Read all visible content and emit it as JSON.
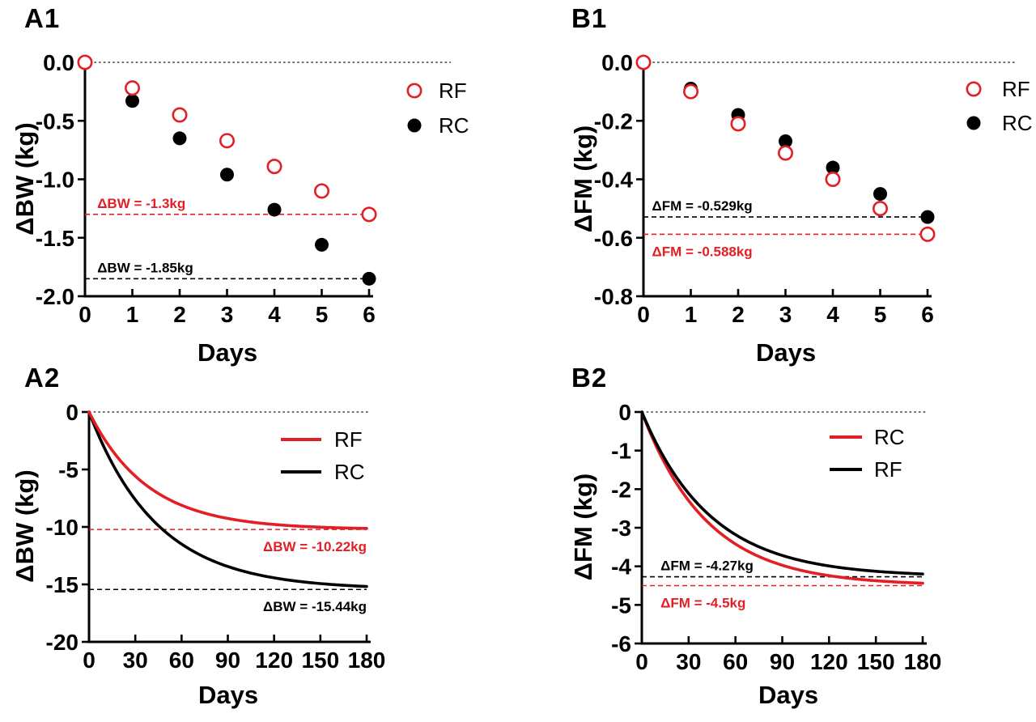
{
  "figure": {
    "background": "#ffffff",
    "description": "Four-panel weight-loss modeling figure"
  },
  "colors": {
    "red": "#e31e25",
    "black": "#000000",
    "zero_line": "#3a3a3a"
  },
  "panels": {
    "a1": {
      "letter": "A1",
      "xlabel": "Days",
      "ylabel": "ΔBW (kg)"
    },
    "b1": {
      "letter": "B1",
      "xlabel": "Days",
      "ylabel": "ΔFM (kg)"
    },
    "a2": {
      "letter": "A2",
      "xlabel": "Days",
      "ylabel": "ΔBW (kg)"
    },
    "b2": {
      "letter": "B2",
      "xlabel": "Days",
      "ylabel": "ΔFM (kg)"
    }
  },
  "chart_data": [
    {
      "id": "a1",
      "panel": "A1",
      "type": "scatter",
      "title": "",
      "xlabel": "Days",
      "ylabel": "ΔBW (kg)",
      "xlim": [
        0,
        6
      ],
      "ylim": [
        -2,
        0
      ],
      "xtick_values": [
        0,
        1,
        2,
        3,
        4,
        5,
        6
      ],
      "xtick_labels": [
        "0",
        "1",
        "2",
        "3",
        "4",
        "5",
        "6"
      ],
      "ytick_values": [
        0,
        -0.5,
        -1,
        -1.5,
        -2
      ],
      "ytick_labels": [
        "0.0",
        "-0.5",
        "-1.0",
        "-1.5",
        "-2.0"
      ],
      "x": [
        0,
        1,
        2,
        3,
        4,
        5,
        6
      ],
      "series": [
        {
          "name": "RC",
          "marker": "filled-circle",
          "color": "#000000",
          "values": [
            0,
            -0.33,
            -0.65,
            -0.96,
            -1.26,
            -1.56,
            -1.85
          ]
        },
        {
          "name": "RF",
          "marker": "open-circle",
          "color": "#e31e25",
          "values": [
            0,
            -0.22,
            -0.45,
            -0.67,
            -0.89,
            -1.1,
            -1.3
          ]
        }
      ],
      "legend": [
        "RF",
        "RC"
      ],
      "zero_line": true,
      "ref_lines": [
        {
          "value": -1.3,
          "color": "#e31e25",
          "label": "ΔBW = -1.3kg",
          "label_x": 0.26,
          "anchor": "start",
          "side": "above"
        },
        {
          "value": -1.85,
          "color": "#000000",
          "label": "ΔBW = -1.85kg",
          "label_x": 0.26,
          "anchor": "start",
          "side": "above"
        }
      ]
    },
    {
      "id": "b1",
      "panel": "B1",
      "type": "scatter",
      "title": "",
      "xlabel": "Days",
      "ylabel": "ΔFM (kg)",
      "xlim": [
        0,
        6
      ],
      "ylim": [
        -0.8,
        0
      ],
      "xtick_values": [
        0,
        1,
        2,
        3,
        4,
        5,
        6
      ],
      "xtick_labels": [
        "0",
        "1",
        "2",
        "3",
        "4",
        "5",
        "6"
      ],
      "ytick_values": [
        0,
        -0.2,
        -0.4,
        -0.6,
        -0.8
      ],
      "ytick_labels": [
        "0.0",
        "-0.2",
        "-0.4",
        "-0.6",
        "-0.8"
      ],
      "x": [
        0,
        1,
        2,
        3,
        4,
        5,
        6
      ],
      "series": [
        {
          "name": "RC",
          "marker": "filled-circle",
          "color": "#000000",
          "values": [
            0,
            -0.09,
            -0.18,
            -0.27,
            -0.36,
            -0.45,
            -0.529
          ]
        },
        {
          "name": "RF",
          "marker": "open-circle",
          "color": "#e31e25",
          "values": [
            0,
            -0.1,
            -0.21,
            -0.31,
            -0.4,
            -0.5,
            -0.588
          ]
        }
      ],
      "legend": [
        "RF",
        "RC"
      ],
      "zero_line": true,
      "ref_lines": [
        {
          "value": -0.529,
          "color": "#000000",
          "label": "ΔFM = -0.529kg",
          "label_x": 0.18,
          "anchor": "start",
          "side": "above"
        },
        {
          "value": -0.588,
          "color": "#e31e25",
          "label": "ΔFM = -0.588kg",
          "label_x": 0.18,
          "anchor": "start",
          "side": "below"
        }
      ]
    },
    {
      "id": "a2",
      "panel": "A2",
      "type": "line",
      "title": "",
      "xlabel": "Days",
      "ylabel": "ΔBW (kg)",
      "xlim": [
        0,
        180
      ],
      "ylim": [
        -20,
        0
      ],
      "xtick_values": [
        0,
        30,
        60,
        90,
        120,
        150,
        180
      ],
      "xtick_labels": [
        "0",
        "30",
        "60",
        "90",
        "120",
        "150",
        "180"
      ],
      "ytick_values": [
        0,
        -5,
        -10,
        -15,
        -20
      ],
      "ytick_labels": [
        "0",
        "-5",
        "-10",
        "-15",
        "-20"
      ],
      "model": "y(t) = plateau * (1 - exp(-t / tau_days))",
      "series": [
        {
          "name": "RC",
          "color": "#000000",
          "plateau": -15.44,
          "tau_days": 44,
          "x_sampled": [
            0,
            30,
            60,
            90,
            120,
            150,
            180
          ],
          "values_sampled": [
            0,
            -7.63,
            -11.49,
            -13.45,
            -14.44,
            -14.93,
            -15.18
          ]
        },
        {
          "name": "RF",
          "color": "#e31e25",
          "plateau": -10.22,
          "tau_days": 38,
          "x_sampled": [
            0,
            30,
            60,
            90,
            120,
            150,
            180
          ],
          "values_sampled": [
            0,
            -5.58,
            -8.11,
            -9.26,
            -9.78,
            -10.02,
            -10.13
          ]
        }
      ],
      "legend": [
        "RF",
        "RC"
      ],
      "zero_line": true,
      "ref_lines": [
        {
          "value": -10.22,
          "color": "#e31e25",
          "label": "ΔBW = -10.22kg",
          "label_x": 180,
          "anchor": "end",
          "side": "below"
        },
        {
          "value": -15.44,
          "color": "#000000",
          "label": "ΔBW = -15.44kg",
          "label_x": 180,
          "anchor": "end",
          "side": "below"
        }
      ]
    },
    {
      "id": "b2",
      "panel": "B2",
      "type": "line",
      "title": "",
      "xlabel": "Days",
      "ylabel": "ΔFM (kg)",
      "xlim": [
        0,
        180
      ],
      "ylim": [
        -6,
        0
      ],
      "xtick_values": [
        0,
        30,
        60,
        90,
        120,
        150,
        180
      ],
      "xtick_labels": [
        "0",
        "30",
        "60",
        "90",
        "120",
        "150",
        "180"
      ],
      "ytick_values": [
        0,
        -1,
        -2,
        -3,
        -4,
        -5,
        -6
      ],
      "ytick_labels": [
        "0",
        "-1",
        "-2",
        "-3",
        "-4",
        "-5",
        "-6"
      ],
      "model": "y(t) = plateau * (1 - exp(-t / tau_days))",
      "series": [
        {
          "name": "RC",
          "color": "#e31e25",
          "plateau": -4.5,
          "tau_days": 42,
          "x_sampled": [
            0,
            30,
            60,
            90,
            120,
            150,
            180
          ],
          "values_sampled": [
            0,
            -2.3,
            -3.42,
            -3.97,
            -4.24,
            -4.37,
            -4.44
          ]
        },
        {
          "name": "RF",
          "color": "#000000",
          "plateau": -4.27,
          "tau_days": 44,
          "x_sampled": [
            0,
            30,
            60,
            90,
            120,
            150,
            180
          ],
          "values_sampled": [
            0,
            -2.11,
            -3.18,
            -3.72,
            -3.99,
            -4.13,
            -4.2
          ]
        }
      ],
      "legend": [
        "RC",
        "RF"
      ],
      "zero_line": true,
      "ref_lines": [
        {
          "value": -4.27,
          "color": "#000000",
          "label": "ΔFM = -4.27kg",
          "label_x": 12,
          "anchor": "start",
          "side": "above"
        },
        {
          "value": -4.5,
          "color": "#e31e25",
          "label": "ΔFM = -4.5kg",
          "label_x": 12,
          "anchor": "start",
          "side": "below"
        }
      ]
    }
  ]
}
